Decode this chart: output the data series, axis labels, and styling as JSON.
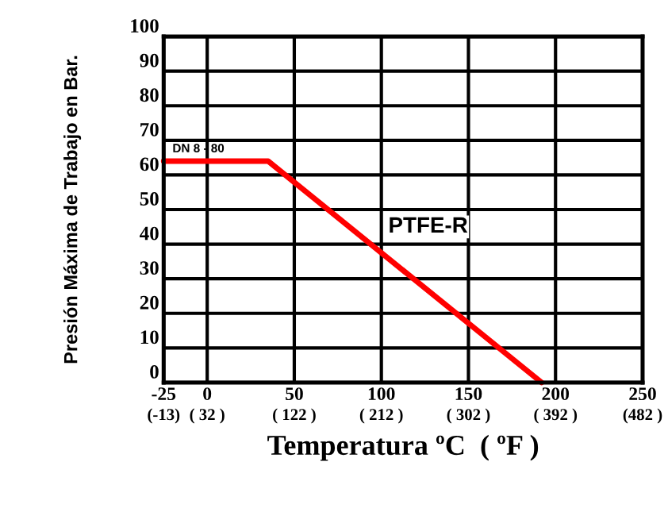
{
  "chart_data": {
    "type": "line",
    "xlabel": "Temperatura ºC  ( ºF )",
    "ylabel": "Presión Máxima de Trabajo en Bar.",
    "x": [
      -25,
      35,
      192
    ],
    "series": [
      {
        "name": "PTFE-R",
        "color": "#ff0000",
        "values": [
          64,
          64,
          0
        ]
      }
    ],
    "annotations": [
      {
        "text": "DN 8 - 80",
        "x": -25,
        "y": 64
      }
    ],
    "xlim": [
      -25,
      250
    ],
    "ylim": [
      0,
      100
    ],
    "xticks": [
      -25,
      0,
      50,
      100,
      150,
      200,
      250
    ],
    "x2lim": [
      -13,
      482
    ],
    "x2ticks": [
      {
        "value": -13,
        "label": "(-13)"
      },
      {
        "value": 32,
        "label": "( 32 )"
      },
      {
        "value": 122,
        "label": "( 122 )"
      },
      {
        "value": 212,
        "label": "( 212 )"
      },
      {
        "value": 302,
        "label": "( 302 )"
      },
      {
        "value": 392,
        "label": "( 392 )"
      },
      {
        "value": 482,
        "label": "(482 )"
      }
    ],
    "yticks": [
      0,
      10,
      20,
      30,
      40,
      50,
      60,
      70,
      80,
      90,
      100
    ],
    "grid": true,
    "marker": "none",
    "line_style": "solid",
    "legend": false
  }
}
